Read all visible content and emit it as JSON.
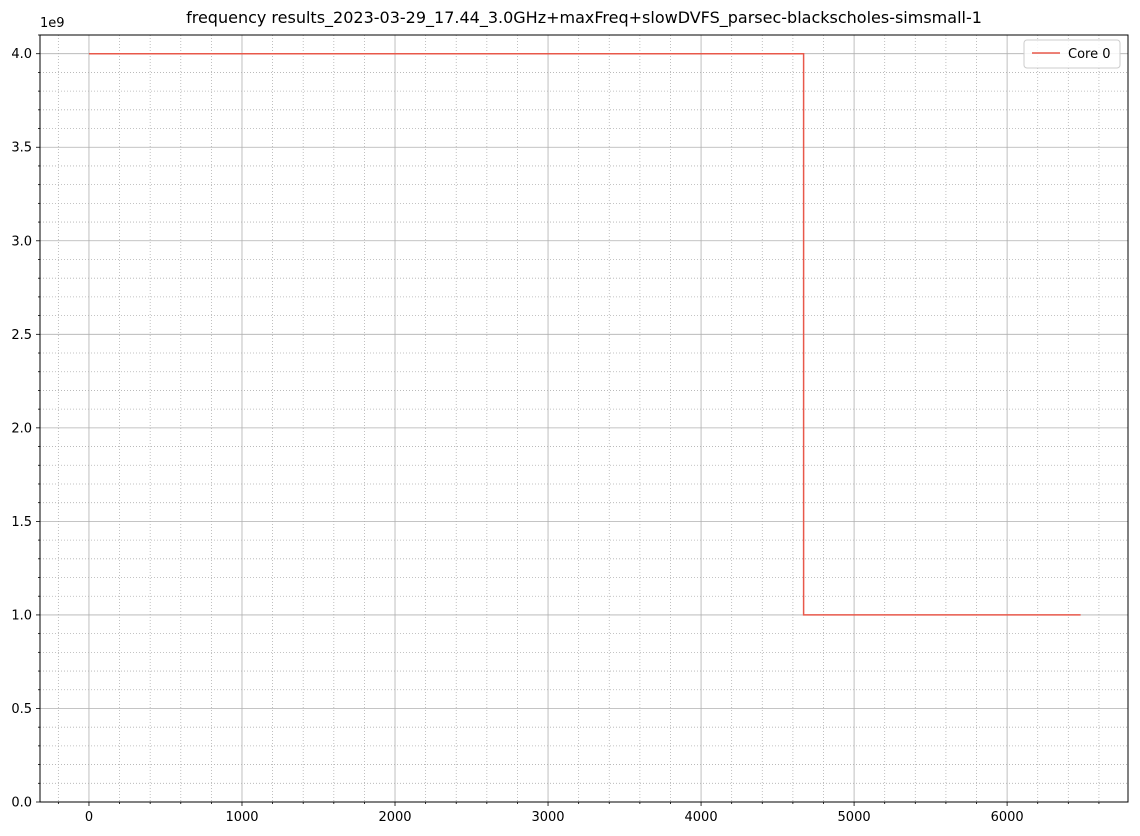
{
  "chart_data": {
    "type": "line",
    "title": "frequency results_2023-03-29_17.44_3.0GHz+maxFreq+slowDVFS_parsec-blackscholes-simsmall-1",
    "xlabel": "",
    "ylabel": "",
    "y_offset_label": "1e9",
    "xlim": [
      -320,
      6790
    ],
    "ylim": [
      0,
      4.1
    ],
    "y_scale_factor": 1000000000,
    "x_ticks": [
      0,
      1000,
      2000,
      3000,
      4000,
      5000,
      6000
    ],
    "x_tick_labels": [
      "0",
      "1000",
      "2000",
      "3000",
      "4000",
      "5000",
      "6000"
    ],
    "y_ticks": [
      0.0,
      0.5,
      1.0,
      1.5,
      2.0,
      2.5,
      3.0,
      3.5,
      4.0
    ],
    "y_tick_labels": [
      "0.0",
      "0.5",
      "1.0",
      "1.5",
      "2.0",
      "2.5",
      "3.0",
      "3.5",
      "4.0"
    ],
    "grid": "major solid and minor dotted",
    "legend_position": "top-right",
    "series": [
      {
        "name": "Core 0",
        "color": "#e8584a",
        "step": true,
        "x": [
          0,
          4670,
          4670,
          6480
        ],
        "y": [
          4.0,
          4.0,
          1.0,
          1.0
        ]
      }
    ]
  }
}
